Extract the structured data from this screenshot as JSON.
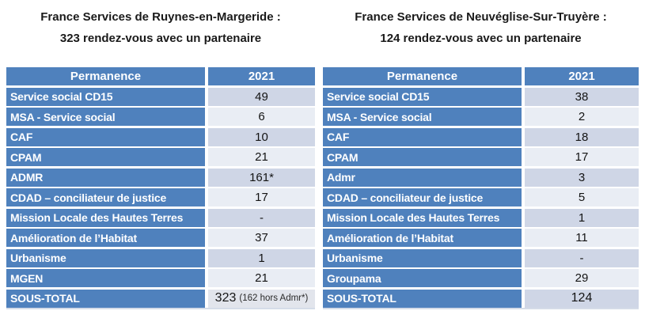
{
  "colors": {
    "header_blue": "#4F81BD",
    "band_a": "#CFD6E6",
    "band_b": "#E9EDF4",
    "total_light": "#E2E5EC"
  },
  "panels": [
    {
      "title_line1": "France Services de Ruynes-en-Margeride :",
      "title_line2": "323 rendez-vous avec un partenaire",
      "header": {
        "col1": "Permanence",
        "col2": "2021"
      },
      "rows": [
        {
          "label": "Service social CD15",
          "value": "49"
        },
        {
          "label": "MSA - Service social",
          "value": "6"
        },
        {
          "label": "CAF",
          "value": "10"
        },
        {
          "label": "CPAM",
          "value": "21"
        },
        {
          "label": "ADMR",
          "value": "161*"
        },
        {
          "label": "CDAD – conciliateur de justice",
          "value": "17"
        },
        {
          "label": "Mission Locale des Hautes Terres",
          "value": "-"
        },
        {
          "label": "Amélioration de l’Habitat",
          "value": "37"
        },
        {
          "label": "Urbanisme",
          "value": "1"
        },
        {
          "label": "MGEN",
          "value": "21"
        }
      ],
      "total": {
        "label": "SOUS-TOTAL",
        "value": "323",
        "note": "(162 hors Admr*)"
      }
    },
    {
      "title_line1": "France Services de Neuvéglise-Sur-Truyère :",
      "title_line2": "124 rendez-vous avec un partenaire",
      "header": {
        "col1": "Permanence",
        "col2": "2021"
      },
      "rows": [
        {
          "label": "Service social CD15",
          "value": "38"
        },
        {
          "label": "MSA - Service social",
          "value": "2"
        },
        {
          "label": "CAF",
          "value": "18"
        },
        {
          "label": "CPAM",
          "value": "17"
        },
        {
          "label": "Admr",
          "value": "3"
        },
        {
          "label": "CDAD – conciliateur de justice",
          "value": "5"
        },
        {
          "label": "Mission Locale des Hautes Terres",
          "value": "1"
        },
        {
          "label": "Amélioration de l’Habitat",
          "value": "11"
        },
        {
          "label": "Urbanisme",
          "value": "-"
        },
        {
          "label": "Groupama",
          "value": "29"
        }
      ],
      "total": {
        "label": "SOUS-TOTAL",
        "value": "124"
      }
    }
  ]
}
